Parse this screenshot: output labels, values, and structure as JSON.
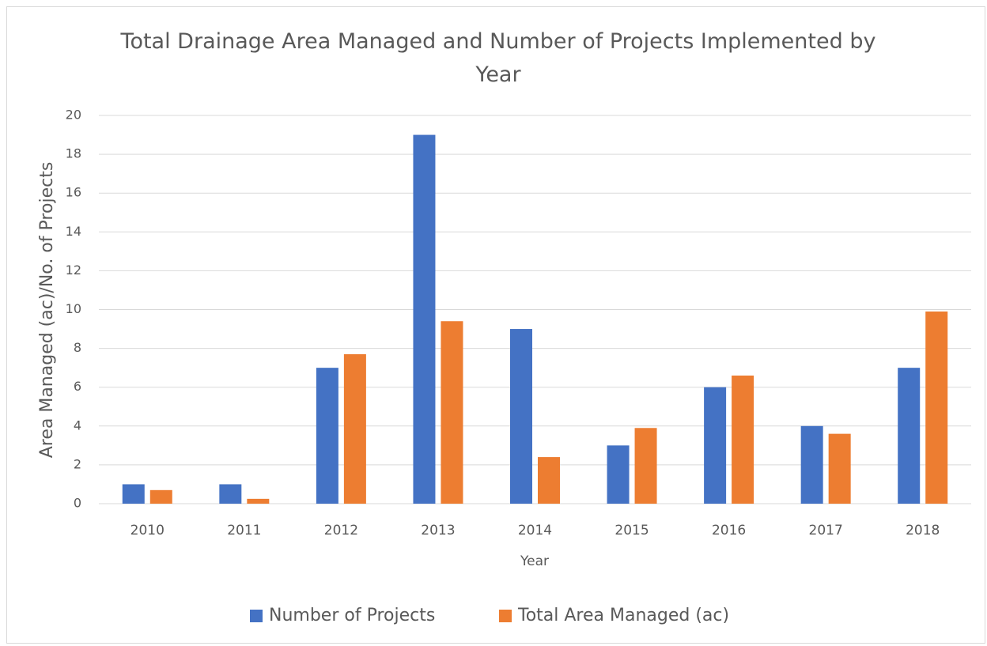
{
  "chart_data": {
    "type": "bar",
    "title": "Total Drainage Area Managed and Number of Projects Implemented by Year",
    "x_label": "Year",
    "y_label": "Area Managed (ac)/No. of Projects",
    "categories": [
      "2010",
      "2011",
      "2012",
      "2013",
      "2014",
      "2015",
      "2016",
      "2017",
      "2018"
    ],
    "series": [
      {
        "name": "Number of Projects",
        "color": "#4472c4",
        "values": [
          1,
          1,
          7,
          19,
          9,
          3,
          6,
          4,
          7
        ]
      },
      {
        "name": "Total Area Managed (ac)",
        "color": "#ed7d31",
        "values": [
          0.7,
          0.25,
          7.7,
          9.4,
          2.4,
          3.9,
          6.6,
          3.6,
          9.9
        ]
      }
    ],
    "ylim": [
      0,
      20
    ],
    "yticks": [
      0,
      2,
      4,
      6,
      8,
      10,
      12,
      14,
      16,
      18,
      20
    ],
    "grid": true,
    "legend": "bottom"
  }
}
